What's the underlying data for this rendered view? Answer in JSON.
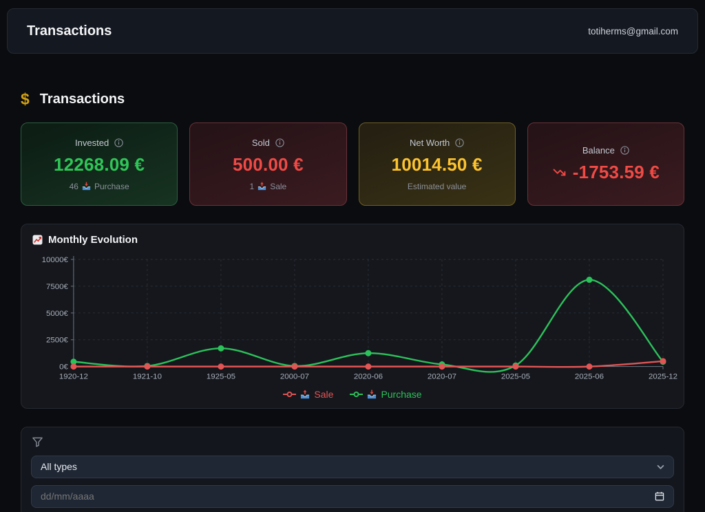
{
  "topbar": {
    "title": "Transactions",
    "email": "totiherms@gmail.com"
  },
  "section": {
    "title": "Transactions",
    "icon": "dollar-icon",
    "icon_glyph": "$",
    "icon_color": "#d2a213"
  },
  "cards": [
    {
      "label": "Invested",
      "value": "12268.09 €",
      "count": "46",
      "count_label": "Purchase",
      "count_icon": "inbox-tray-icon",
      "accent": "#2fc558",
      "border": "#2b5e41",
      "bg_from": "#0d1e15",
      "bg_to": "#173321"
    },
    {
      "label": "Sold",
      "value": "500.00 €",
      "count": "1",
      "count_label": "Sale",
      "count_icon": "outbox-tray-icon",
      "accent": "#f04a45",
      "border": "#693138",
      "bg_from": "#261317",
      "bg_to": "#3a1b20"
    },
    {
      "label": "Net Worth",
      "value": "10014.50 €",
      "subtitle": "Estimated value",
      "accent": "#fdc32f",
      "border": "#6f6026",
      "bg_from": "#252012",
      "bg_to": "#3a3215"
    },
    {
      "label": "Balance",
      "value": "-1753.59 €",
      "value_icon": "trending-down-icon",
      "accent": "#f04a45",
      "border": "#693138",
      "bg_from": "#261317",
      "bg_to": "#3a1b20"
    }
  ],
  "chart": {
    "title": "Monthly Evolution",
    "icon": "chart-increasing-icon"
  },
  "chart_data": {
    "type": "line",
    "x": [
      "1920-12",
      "1921-10",
      "1925-05",
      "2000-07",
      "2020-06",
      "2020-07",
      "2025-05",
      "2025-06",
      "2025-12"
    ],
    "series": [
      {
        "name": "Sale",
        "color": "#e25555",
        "values": [
          0,
          0,
          0,
          0,
          0,
          0,
          0,
          0,
          500
        ]
      },
      {
        "name": "Purchase",
        "color": "#2cc25a",
        "values": [
          450,
          50,
          1700,
          50,
          1250,
          200,
          100,
          8100,
          450
        ]
      }
    ],
    "ylim": [
      0,
      10000
    ],
    "yticks": [
      0,
      2500,
      5000,
      7500,
      10000
    ],
    "ytick_labels": [
      "0€",
      "2500€",
      "5000€",
      "7500€",
      "10000€"
    ],
    "grid": true,
    "grid_style": "dashed",
    "legend_position": "bottom",
    "legend": [
      {
        "label": "Sale",
        "color": "#e25555",
        "icon": "outbox-tray-icon"
      },
      {
        "label": "Purchase",
        "color": "#2cc25a",
        "icon": "inbox-tray-icon"
      }
    ],
    "colors": {
      "axis": "#6e7681",
      "grid": "#2b2f37",
      "tick_text": "#a8aeb8"
    }
  },
  "filters": {
    "icon": "funnel-icon",
    "type_select": {
      "value": "All types"
    },
    "date_input": {
      "placeholder": "dd/mm/aaaa"
    }
  }
}
